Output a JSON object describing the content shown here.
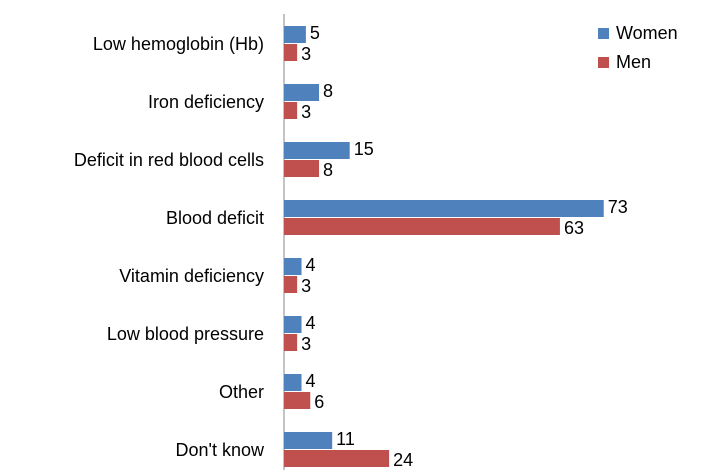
{
  "chart_data": {
    "type": "hbar",
    "categories": [
      "Low hemoglobin (Hb)",
      "Iron deficiency",
      "Deficit in red blood cells",
      "Blood deficit",
      "Vitamin deficiency",
      "Low blood pressure",
      "Other",
      "Don't know"
    ],
    "series": [
      {
        "name": "Women",
        "color": "#4f81bd",
        "values": [
          5,
          8,
          15,
          73,
          4,
          4,
          4,
          11
        ]
      },
      {
        "name": "Men",
        "color": "#c0504d",
        "values": [
          3,
          3,
          8,
          63,
          3,
          3,
          6,
          24
        ]
      }
    ],
    "legend": "top-right"
  }
}
